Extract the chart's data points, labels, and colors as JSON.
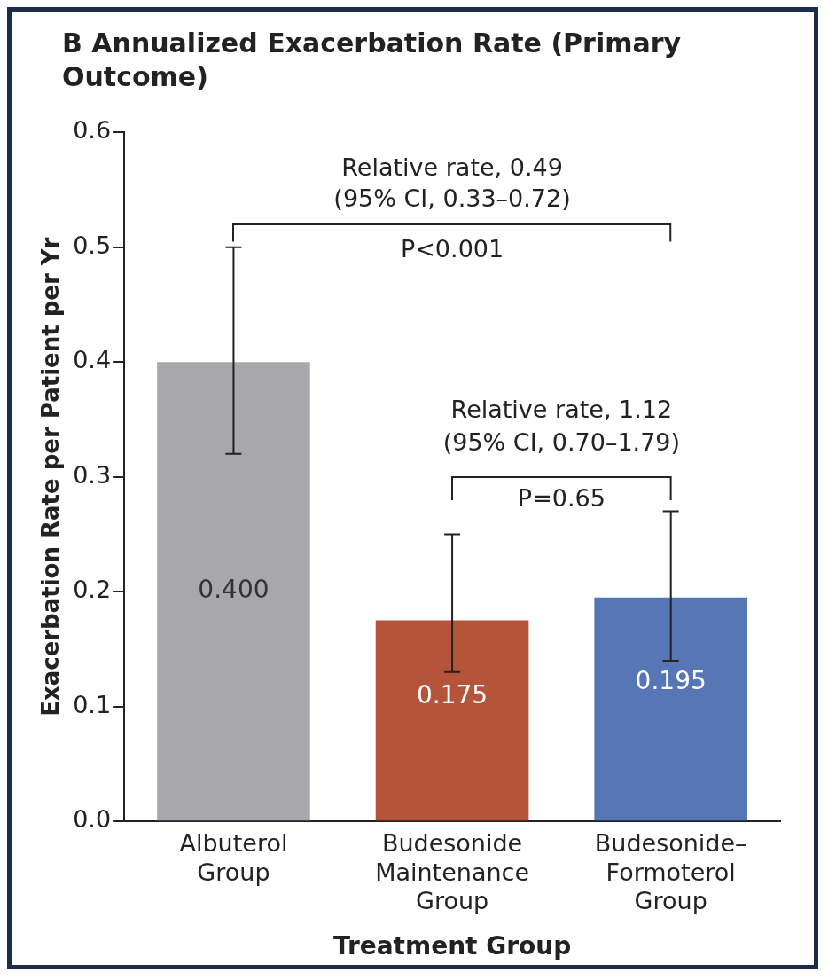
{
  "chart_data": {
    "type": "bar",
    "title": "B  Annualized Exacerbation Rate (Primary Outcome)",
    "xlabel": "Treatment Group",
    "ylabel": "Exacerbation Rate per Patient per Yr",
    "categories": [
      "Albuterol\nGroup",
      "Budesonide\nMaintenance\nGroup",
      "Budesonide–\nFormoterol\nGroup"
    ],
    "values": [
      0.4,
      0.175,
      0.195
    ],
    "colors": [
      "#a8a8ac",
      "#b5533b",
      "#5676b6"
    ],
    "errors": [
      [
        0.32,
        0.5
      ],
      [
        0.13,
        0.25
      ],
      [
        0.14,
        0.27
      ]
    ],
    "ylim": [
      0,
      0.6
    ],
    "yticks": [
      {
        "value": 0,
        "label": "0.0"
      },
      {
        "value": 0.1,
        "label": "0.1"
      },
      {
        "value": 0.2,
        "label": "0.2"
      },
      {
        "value": 0.3,
        "label": "0.3"
      },
      {
        "value": 0.4,
        "label": "0.4"
      },
      {
        "value": 0.5,
        "label": "0.5"
      },
      {
        "value": 0.6,
        "label": "0.6"
      }
    ],
    "value_labels": [
      "0.400",
      "0.175",
      "0.195"
    ],
    "annotations": [
      "Relative rate, 0.49",
      "(95% CI, 0.33–0.72)",
      "P<0.001",
      "Relative rate, 1.12",
      "(95% CI, 0.70–1.79)",
      "P=0.65"
    ],
    "grid": false,
    "legend": false
  }
}
